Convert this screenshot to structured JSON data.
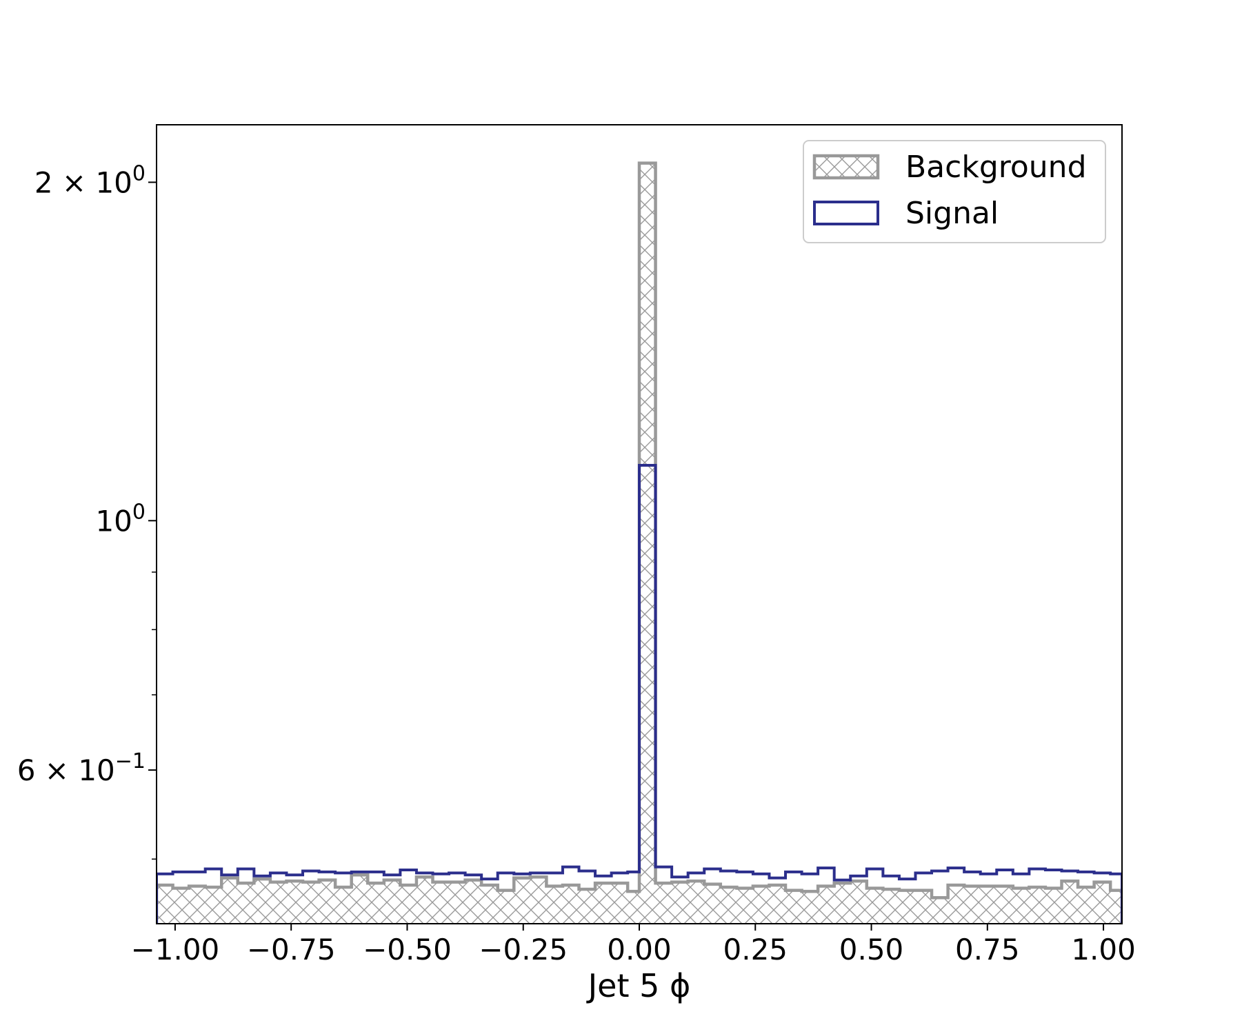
{
  "chart_data": {
    "type": "histogram",
    "title": "",
    "xlabel": "Jet 5 ϕ",
    "ylabel": "",
    "xlim": [
      -1.04,
      1.04
    ],
    "ylim": [
      0.438,
      2.25
    ],
    "yscale": "log",
    "x_ticks": [
      -1.0,
      -0.75,
      -0.5,
      -0.25,
      0.0,
      0.25,
      0.5,
      0.75,
      1.0
    ],
    "x_tick_labels": [
      "−1.00",
      "−0.75",
      "−0.50",
      "−0.25",
      "0.00",
      "0.25",
      "0.50",
      "0.75",
      "1.00"
    ],
    "y_ticks": [
      {
        "value": 2.0,
        "mantissa": "2",
        "base": "10",
        "exp": "0"
      },
      {
        "value": 1.0,
        "mantissa": "",
        "base": "10",
        "exp": "0"
      },
      {
        "value": 0.6,
        "mantissa": "6",
        "base": "10",
        "exp": "−1"
      }
    ],
    "y_minor_ticks": [
      0.5,
      0.7,
      0.8,
      0.9
    ],
    "bin_edges": [
      -1.04,
      -1.005,
      -0.97,
      -0.935,
      -0.9,
      -0.865,
      -0.83,
      -0.795,
      -0.76,
      -0.725,
      -0.69,
      -0.655,
      -0.62,
      -0.585,
      -0.55,
      -0.515,
      -0.48,
      -0.445,
      -0.41,
      -0.375,
      -0.34,
      -0.305,
      -0.27,
      -0.235,
      -0.2,
      -0.165,
      -0.13,
      -0.095,
      -0.06,
      -0.025,
      0.0,
      0.035,
      0.07,
      0.105,
      0.14,
      0.175,
      0.21,
      0.245,
      0.28,
      0.315,
      0.35,
      0.385,
      0.42,
      0.455,
      0.49,
      0.525,
      0.56,
      0.595,
      0.63,
      0.665,
      0.7,
      0.735,
      0.77,
      0.805,
      0.84,
      0.875,
      0.91,
      0.945,
      0.98,
      1.015,
      1.04
    ],
    "legend": {
      "position": "top-right"
    },
    "series": [
      {
        "name": "Background",
        "style": "hatched",
        "color": "#999999",
        "values": [
          0.474,
          0.471,
          0.473,
          0.472,
          0.481,
          0.476,
          0.48,
          0.477,
          0.478,
          0.477,
          0.479,
          0.472,
          0.484,
          0.476,
          0.479,
          0.474,
          0.482,
          0.477,
          0.477,
          0.479,
          0.474,
          0.469,
          0.481,
          0.482,
          0.473,
          0.474,
          0.47,
          0.476,
          0.476,
          0.468,
          2.08,
          0.476,
          0.477,
          0.478,
          0.475,
          0.472,
          0.471,
          0.473,
          0.474,
          0.469,
          0.468,
          0.473,
          0.476,
          0.478,
          0.471,
          0.47,
          0.469,
          0.469,
          0.462,
          0.474,
          0.473,
          0.473,
          0.473,
          0.471,
          0.472,
          0.471,
          0.478,
          0.472,
          0.477,
          0.469
        ]
      },
      {
        "name": "Signal",
        "style": "step",
        "color": "#2b2e8c",
        "values": [
          0.485,
          0.487,
          0.487,
          0.49,
          0.484,
          0.49,
          0.483,
          0.486,
          0.484,
          0.488,
          0.487,
          0.486,
          0.487,
          0.487,
          0.484,
          0.489,
          0.486,
          0.485,
          0.486,
          0.484,
          0.48,
          0.486,
          0.485,
          0.486,
          0.486,
          0.492,
          0.488,
          0.483,
          0.486,
          0.487,
          1.12,
          0.492,
          0.482,
          0.486,
          0.49,
          0.488,
          0.487,
          0.485,
          0.481,
          0.487,
          0.485,
          0.491,
          0.479,
          0.483,
          0.49,
          0.483,
          0.48,
          0.486,
          0.488,
          0.491,
          0.487,
          0.485,
          0.489,
          0.485,
          0.49,
          0.489,
          0.488,
          0.487,
          0.486,
          0.485
        ]
      }
    ]
  }
}
